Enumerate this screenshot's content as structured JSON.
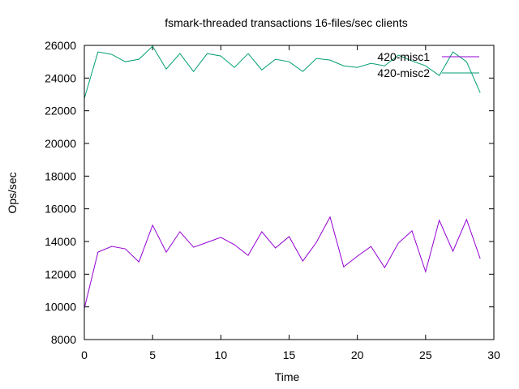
{
  "chart_data": {
    "type": "line",
    "title": "fsmark-threaded transactions 16-files/sec clients",
    "xlabel": "Time",
    "ylabel": "Ops/sec",
    "xlim": [
      0,
      30
    ],
    "ylim": [
      8000,
      26000
    ],
    "xticks": [
      0,
      5,
      10,
      15,
      20,
      25,
      30
    ],
    "yticks": [
      8000,
      10000,
      12000,
      14000,
      16000,
      18000,
      20000,
      22000,
      24000,
      26000
    ],
    "grid": false,
    "legend_position": "top-right",
    "x": [
      0,
      1,
      2,
      3,
      4,
      5,
      6,
      7,
      8,
      9,
      10,
      11,
      12,
      13,
      14,
      15,
      16,
      17,
      18,
      19,
      20,
      21,
      22,
      23,
      24,
      25,
      26,
      27,
      28,
      29
    ],
    "series": [
      {
        "name": "420-misc1",
        "color": "#9400d3",
        "values": [
          9900,
          13350,
          13700,
          13550,
          12750,
          15000,
          13350,
          14600,
          13650,
          13950,
          14250,
          13800,
          13150,
          14600,
          13600,
          14300,
          12800,
          13950,
          15500,
          12450,
          13100,
          13700,
          12400,
          13900,
          14650,
          12150,
          15300,
          13400,
          15350,
          12950
        ]
      },
      {
        "name": "420-misc2",
        "color": "#009e73",
        "values": [
          22750,
          25600,
          25450,
          25000,
          25150,
          25950,
          24550,
          25500,
          24400,
          25500,
          25350,
          24650,
          25500,
          24500,
          25150,
          25000,
          24400,
          25200,
          25100,
          24750,
          24650,
          24900,
          24750,
          25400,
          25050,
          24750,
          24150,
          25600,
          25000,
          23100
        ]
      }
    ]
  }
}
